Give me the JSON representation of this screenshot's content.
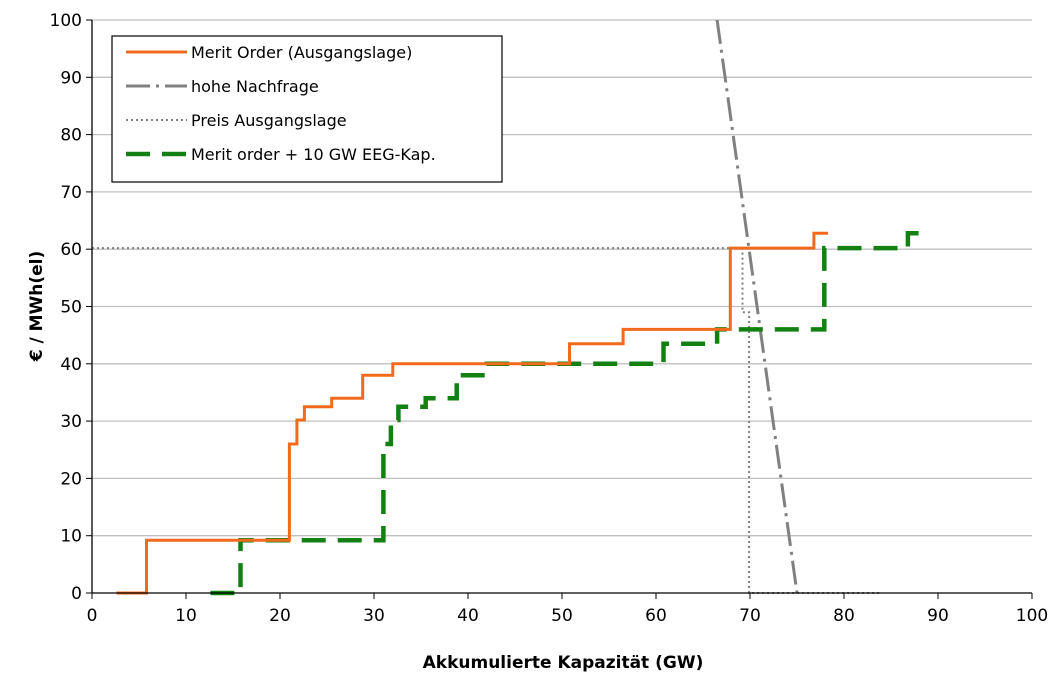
{
  "chart_data": {
    "type": "line",
    "xlabel": "Akkumulierte Kapazität (GW)",
    "ylabel": "€ / MWh(el)",
    "xlim": [
      0,
      100
    ],
    "ylim": [
      0,
      100
    ],
    "x_ticks": [
      "0",
      "10",
      "20",
      "30",
      "40",
      "50",
      "60",
      "70",
      "80",
      "90",
      "100"
    ],
    "y_ticks": [
      "0",
      "10",
      "20",
      "30",
      "40",
      "50",
      "60",
      "70",
      "80",
      "90",
      "100"
    ],
    "grid": "horizontal",
    "legend_position": "top-left",
    "series": [
      {
        "name": "Merit Order (Ausgangslage)",
        "color": "#f26b1d",
        "style": "solid",
        "step": true,
        "points": [
          [
            2.6,
            0
          ],
          [
            5.8,
            0
          ],
          [
            5.8,
            9.2
          ],
          [
            21.0,
            9.2
          ],
          [
            21.0,
            26
          ],
          [
            21.8,
            26
          ],
          [
            21.8,
            30.2
          ],
          [
            22.6,
            30.2
          ],
          [
            22.6,
            32.5
          ],
          [
            25.5,
            32.5
          ],
          [
            25.5,
            34
          ],
          [
            28.8,
            34
          ],
          [
            28.8,
            38
          ],
          [
            32.0,
            38
          ],
          [
            32.0,
            40
          ],
          [
            50.8,
            40
          ],
          [
            50.8,
            43.5
          ],
          [
            56.5,
            43.5
          ],
          [
            56.5,
            46
          ],
          [
            67.9,
            46
          ],
          [
            67.9,
            60.2
          ],
          [
            76.8,
            60.2
          ],
          [
            76.8,
            62.8
          ],
          [
            78.3,
            62.8
          ]
        ]
      },
      {
        "name": "hohe Nachfrage",
        "color": "#808080",
        "style": "dashdot",
        "step": false,
        "points": [
          [
            66.5,
            100
          ],
          [
            75.0,
            0
          ]
        ]
      },
      {
        "name": "Preis Ausgangslage",
        "color": "#808080",
        "style": "dotted",
        "step": false,
        "points": [
          [
            0,
            60.2
          ],
          [
            69.2,
            60.2
          ],
          [
            69.2,
            49
          ],
          [
            69.9,
            49
          ],
          [
            69.9,
            0
          ],
          [
            84,
            0
          ]
        ]
      },
      {
        "name": "Merit order + 10 GW EEG-Kap.",
        "color": "#128012",
        "style": "dashed",
        "step": true,
        "points": [
          [
            12.6,
            0
          ],
          [
            15.8,
            0
          ],
          [
            15.8,
            9.2
          ],
          [
            31.0,
            9.2
          ],
          [
            31.0,
            26
          ],
          [
            31.8,
            26
          ],
          [
            31.8,
            30.2
          ],
          [
            32.6,
            30.2
          ],
          [
            32.6,
            32.5
          ],
          [
            35.5,
            32.5
          ],
          [
            35.5,
            34
          ],
          [
            38.8,
            34
          ],
          [
            38.8,
            38
          ],
          [
            42.0,
            38
          ],
          [
            42.0,
            40
          ],
          [
            60.8,
            40
          ],
          [
            60.8,
            43.5
          ],
          [
            66.5,
            43.5
          ],
          [
            66.5,
            46
          ],
          [
            77.9,
            46
          ],
          [
            77.9,
            60.2
          ],
          [
            86.8,
            60.2
          ],
          [
            86.8,
            62.8
          ],
          [
            88.3,
            62.8
          ]
        ]
      }
    ]
  }
}
